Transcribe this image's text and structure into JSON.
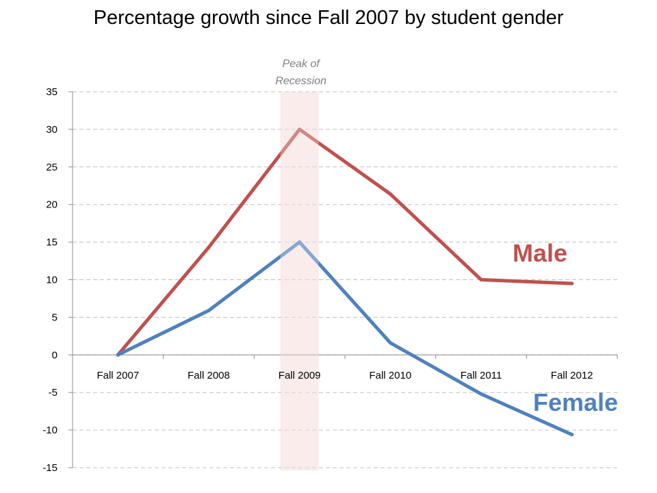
{
  "title": "Percentage growth since Fall 2007 by student gender",
  "chart_data": {
    "type": "line",
    "title": "Percentage growth since Fall 2007 by student gender",
    "xlabel": "",
    "ylabel": "",
    "categories": [
      "Fall 2007",
      "Fall 2008",
      "Fall 2009",
      "Fall 2010",
      "Fall 2011",
      "Fall 2012"
    ],
    "ylim": [
      -15,
      35
    ],
    "yticks": [
      -15,
      -10,
      -5,
      0,
      5,
      10,
      15,
      20,
      25,
      30,
      35
    ],
    "grid": true,
    "series": [
      {
        "name": "Male",
        "values": [
          0,
          14.3,
          30,
          21.4,
          10,
          9.5
        ],
        "color": "#c0504d"
      },
      {
        "name": "Female",
        "values": [
          0,
          5.9,
          15,
          1.6,
          -5.2,
          -10.6
        ],
        "color": "#4f81bd"
      }
    ],
    "annotations": [
      {
        "text_lines": [
          "Peak of",
          "Recession"
        ],
        "category": "Fall 2009",
        "shade_color": "#f7e4e3"
      }
    ]
  }
}
